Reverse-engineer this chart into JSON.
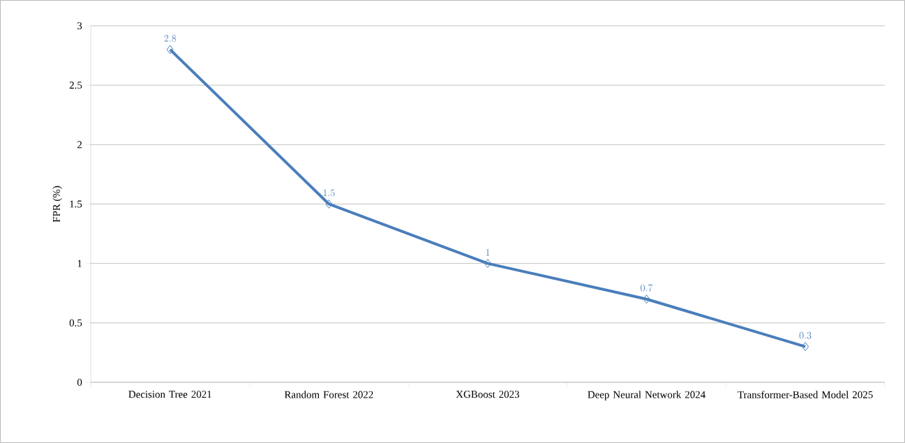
{
  "chart_data": {
    "type": "line",
    "ylabel": "FPR (%)",
    "categories": [
      "Decision Tree 2021",
      "Random Forest 2022",
      "XGBoost 2023",
      "Deep Neural Network 2024",
      "Transformer-Based Model 2025"
    ],
    "values": [
      2.8,
      1.5,
      1,
      0.7,
      0.3
    ],
    "color": "#4a7ebb",
    "marker": "diamond",
    "ylim": [
      0,
      3
    ],
    "yticks": [
      0,
      0.5,
      1,
      1.5,
      2,
      2.5,
      3
    ],
    "grid": "y",
    "data_labels": true
  }
}
